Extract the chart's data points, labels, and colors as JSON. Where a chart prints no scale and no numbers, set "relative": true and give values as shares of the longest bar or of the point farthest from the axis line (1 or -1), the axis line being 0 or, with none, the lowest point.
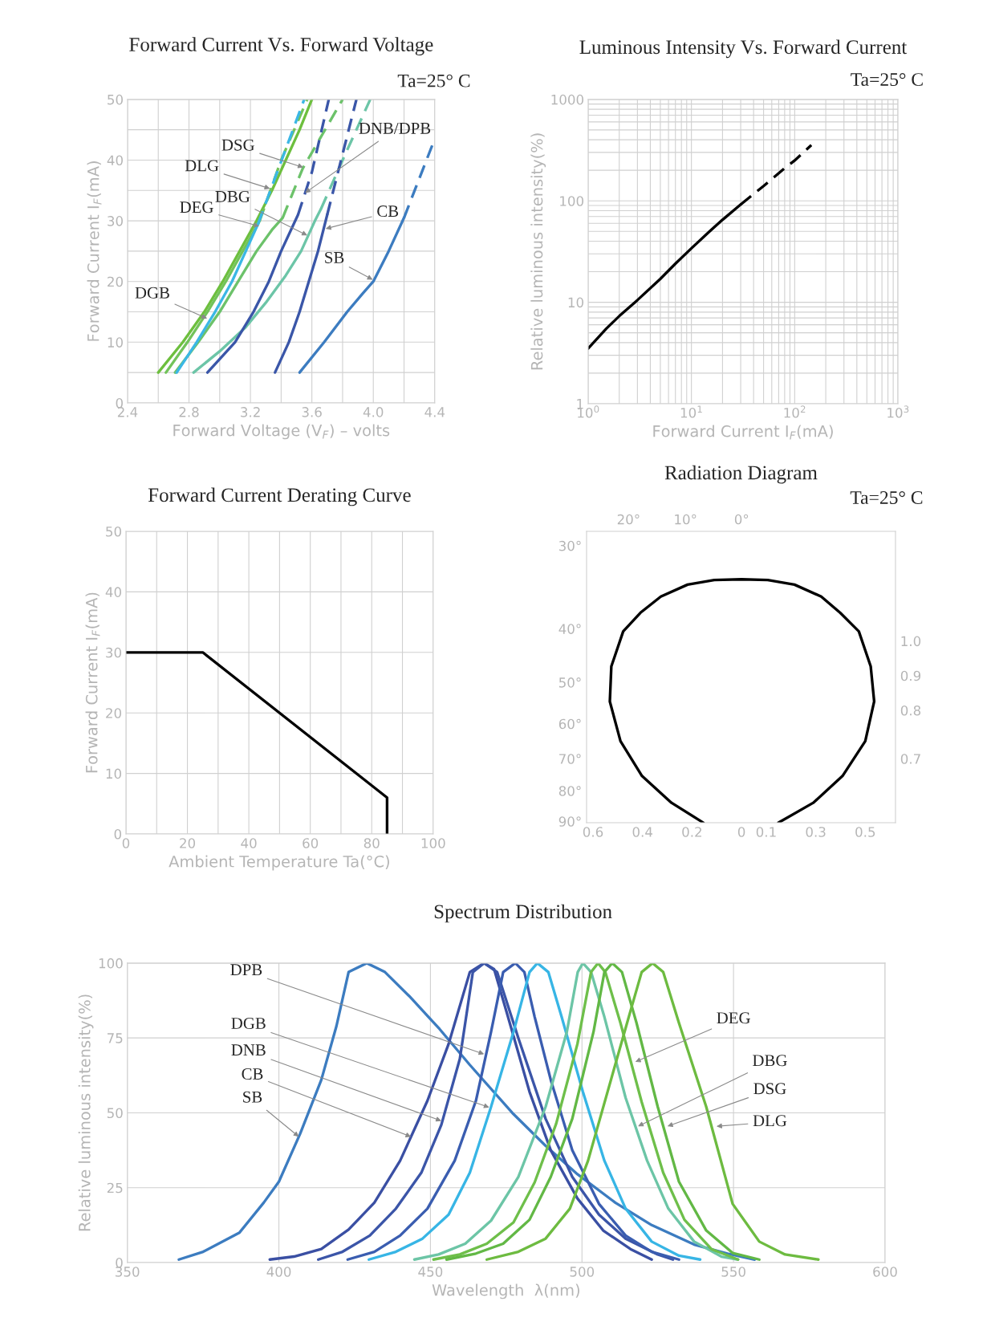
{
  "chart_data": [
    {
      "type": "line",
      "title": "Forward Current Vs. Forward Voltage",
      "xlabel": "Forward Voltage (V$_{F}$) – volts",
      "ylabel": "Forward Current I$_{F}$(mA)",
      "xlim": [
        2.4,
        4.4
      ],
      "xticks": [
        2.4,
        {
          "value": 2.6,
          "label": null
        },
        2.8,
        {
          "value": 3.0,
          "label": null
        },
        3.2,
        {
          "value": 3.4,
          "label": null
        },
        3.6,
        {
          "value": 3.8,
          "label": null
        },
        {
          "value": 4.0,
          "label": "4.0"
        },
        {
          "value": 4.2,
          "label": null
        },
        4.4
      ],
      "ylim": [
        0,
        50
      ],
      "yticks": [
        0,
        {
          "value": 5,
          "label": null
        },
        10,
        {
          "value": 15,
          "label": null
        },
        20,
        {
          "value": 25,
          "label": null
        },
        30,
        {
          "value": 35,
          "label": null
        },
        40,
        {
          "value": 45,
          "label": null
        },
        50
      ],
      "grid": true,
      "series": [
        {
          "color": "#6dbf3e",
          "x": [
            2.6,
            2.76,
            2.9,
            3.02,
            3.13,
            3.24,
            3.34,
            3.43,
            3.52,
            3.6
          ],
          "values": [
            5,
            10,
            15,
            20,
            25,
            30,
            35,
            40,
            45,
            50
          ]
        },
        {
          "color": "#72c35a",
          "x": [
            2.65,
            2.79,
            2.92,
            3.04,
            3.15,
            3.26
          ],
          "values": [
            5,
            10,
            15,
            20,
            25,
            30
          ]
        },
        {
          "color": "#72c35a",
          "line_style": "dashed",
          "x": [
            3.26,
            3.4,
            3.57
          ],
          "values": [
            30,
            40,
            50
          ]
        },
        {
          "color": "#6cc26a",
          "x": [
            2.71,
            2.86,
            3.0,
            3.12,
            3.24,
            3.34,
            3.41
          ],
          "values": [
            5,
            10,
            15,
            20,
            25,
            28.5,
            30.5
          ]
        },
        {
          "color": "#6cc26a",
          "line_style": "dashed",
          "x": [
            3.41,
            3.54,
            3.8
          ],
          "values": [
            30.5,
            38.6,
            50
          ]
        },
        {
          "color": "#3bb7e5",
          "x": [
            2.72,
            2.85,
            2.97,
            3.08,
            3.17,
            3.25
          ],
          "values": [
            5,
            10,
            15,
            20,
            25,
            29.5
          ]
        },
        {
          "color": "#3bb7e5",
          "line_style": "dashed",
          "x": [
            3.25,
            3.33,
            3.55
          ],
          "values": [
            29.5,
            35,
            50
          ]
        },
        {
          "color": "#6cc5a7",
          "x": [
            2.83,
            3.0,
            3.17,
            3.3,
            3.43,
            3.53,
            3.62,
            3.66
          ],
          "values": [
            5,
            8.5,
            12.5,
            16.5,
            21,
            25,
            30,
            32
          ]
        },
        {
          "color": "#6cc5a7",
          "line_style": "dashed",
          "x": [
            3.66,
            3.8,
            3.98
          ],
          "values": [
            32,
            40,
            50
          ]
        },
        {
          "color": "#3a56a8",
          "x": [
            2.92,
            3.1,
            3.22,
            3.32,
            3.4,
            3.51
          ],
          "values": [
            5,
            10,
            15,
            20,
            25,
            31
          ]
        },
        {
          "color": "#3a56a8",
          "line_style": "dashed",
          "x": [
            3.51,
            3.6,
            3.71
          ],
          "values": [
            31,
            38,
            50
          ]
        },
        {
          "color": "#3a56a8",
          "x": [
            3.36,
            3.45,
            3.52,
            3.58,
            3.64,
            3.7
          ],
          "values": [
            5,
            10,
            15,
            20,
            25,
            31
          ]
        },
        {
          "color": "#3a56a8",
          "line_style": "dashed",
          "x": [
            3.7,
            3.79,
            3.89
          ],
          "values": [
            31,
            40,
            50
          ]
        },
        {
          "color": "#3c7cc0",
          "x": [
            3.52,
            3.68,
            3.83,
            3.93,
            4.0,
            4.1,
            4.2
          ],
          "values": [
            5,
            10,
            15,
            18,
            20,
            25,
            30.5
          ]
        },
        {
          "color": "#3c7cc0",
          "line_style": "dashed",
          "x": [
            4.2,
            4.3,
            4.4
          ],
          "values": [
            30.5,
            37,
            43.5
          ]
        }
      ],
      "annotations": [
        "Ta=25° C",
        {
          "text": "DSG",
          "x": 3.544,
          "y": 38.8
        },
        {
          "text": "DLG",
          "x": 3.327,
          "y": 35.3
        },
        {
          "text": "DEG",
          "x": 3.257,
          "y": 29.1
        },
        {
          "text": "DBG",
          "x": 3.57,
          "y": 27.6
        },
        {
          "text": "DGB",
          "x": 2.918,
          "y": 13.9
        },
        {
          "text": "DNB/DPB",
          "x": 3.556,
          "y": 34.6
        },
        {
          "text": "CB",
          "x": 3.69,
          "y": 28.7
        },
        {
          "text": "SB",
          "x": 3.996,
          "y": 20.3
        }
      ]
    },
    {
      "type": "line",
      "title": "Luminous Intensity Vs. Forward Current",
      "xlabel": "Forward Current I$_{F}$(mA)",
      "ylabel": "Relative luminous intensity(%)",
      "log": "xy",
      "xlim": [
        1,
        1000
      ],
      "xticks": [
        {
          "value": 1,
          "label": "10$^{0}$"
        },
        {
          "value": 10,
          "label": "10$^{1}$"
        },
        {
          "value": 100,
          "label": "10$^{2}$"
        },
        {
          "value": 1000,
          "label": "10$^{3}$"
        }
      ],
      "ylim": [
        1,
        1000
      ],
      "yticks": [
        1,
        10,
        100,
        1000
      ],
      "grid": true,
      "series": [
        {
          "color": "#000000",
          "x": [
            1,
            1.5,
            2,
            3,
            5,
            7,
            10,
            15,
            20,
            30
          ],
          "values": [
            3.5,
            5.5,
            7.3,
            10.5,
            17,
            24,
            34,
            50,
            65,
            92
          ]
        },
        {
          "color": "#000000",
          "line_style": "dashed",
          "x": [
            30,
            50,
            80,
            100,
            145
          ],
          "values": [
            92,
            140,
            210,
            250,
            355
          ]
        }
      ],
      "annotations": [
        "Ta=25° C"
      ]
    },
    {
      "type": "line",
      "title": "Forward Current Derating Curve",
      "xlabel": "Ambient Temperature Ta(°C)",
      "ylabel": "Forward Current I$_{F}$(mA)",
      "xlim": [
        0,
        100
      ],
      "xticks": [
        0,
        {
          "value": 10,
          "label": null
        },
        20,
        {
          "value": 30,
          "label": null
        },
        40,
        {
          "value": 50,
          "label": null
        },
        60,
        {
          "value": 70,
          "label": null
        },
        80,
        {
          "value": 90,
          "label": null
        },
        100
      ],
      "ylim": [
        0,
        50
      ],
      "yticks": [
        0,
        10,
        20,
        30,
        40,
        50
      ],
      "grid": true,
      "series": [
        {
          "color": "#000000",
          "x": [
            0,
            25,
            85,
            85
          ],
          "values": [
            30,
            30,
            6,
            0
          ]
        }
      ]
    },
    {
      "type": "line",
      "title": "Radiation Diagram",
      "xlim": [
        -0.626,
        0.622
      ],
      "xticks": [
        {
          "value": -0.6,
          "label": "0.6"
        },
        {
          "value": -0.4,
          "label": "0.4"
        },
        {
          "value": -0.2,
          "label": "0.2"
        },
        0,
        0.1,
        0.3,
        0.5
      ],
      "relative": true,
      "series": [
        {
          "color": "#000000",
          "x": [
            -0.154,
            -0.283,
            -0.402,
            -0.489,
            -0.532,
            -0.526,
            -0.478,
            -0.408,
            -0.326,
            -0.218,
            -0.11,
            0,
            0.106,
            0.214,
            0.322,
            0.398,
            0.474,
            0.522,
            0.536,
            0.5,
            0.408,
            0.29,
            0.149
          ],
          "values": [
            0,
            0.082,
            0.192,
            0.335,
            0.498,
            0.642,
            0.786,
            0.863,
            0.929,
            0.978,
            0.997,
            1,
            0.997,
            0.978,
            0.929,
            0.863,
            0.786,
            0.642,
            0.498,
            0.335,
            0.192,
            0.082,
            0
          ]
        }
      ],
      "annotations": [
        "Ta=25° C",
        "30°",
        "40°",
        "50°",
        "60°",
        "70°",
        "80°",
        "90°",
        "20°",
        "10°",
        "0°",
        "1.0",
        "0.9",
        "0.8",
        "0.7"
      ]
    },
    {
      "type": "line",
      "title": "Spectrum Distribution",
      "xlabel": "Wavelength  λ(nm)",
      "ylabel": "Relative luminous intensity(%)",
      "xlim": [
        350,
        600
      ],
      "xticks": [
        350,
        400,
        450,
        500,
        550,
        600
      ],
      "ylim": [
        0,
        100
      ],
      "yticks": [
        0,
        25,
        50,
        75,
        100
      ],
      "grid": true,
      "series": [
        {
          "color": "#3c7cc0",
          "x": [
            367,
            375,
            387,
            395,
            400,
            407,
            414,
            419,
            423,
            429,
            435,
            443,
            453,
            463,
            477,
            488,
            498.5,
            511,
            523,
            537,
            548,
            557
          ],
          "values": [
            1,
            3.6,
            10,
            20,
            27,
            43,
            61,
            79,
            97,
            100,
            97,
            89,
            78,
            66,
            50,
            39,
            29.5,
            20,
            12.5,
            6,
            3,
            1
          ]
        },
        {
          "color": "#3a4fa3",
          "x": [
            397,
            405,
            414,
            423,
            431.5,
            440,
            449,
            456,
            463,
            467.7,
            471,
            475.6,
            482.7,
            489.7,
            498.5,
            507,
            516,
            523
          ],
          "values": [
            1,
            2,
            4.5,
            11,
            20,
            34,
            54,
            73,
            97,
            100,
            98,
            82,
            57,
            37.5,
            21.4,
            10.7,
            4.5,
            1
          ]
        },
        {
          "color": "#3b55a8",
          "x": [
            413,
            421,
            430,
            438.6,
            447,
            453.6,
            459.7,
            464,
            467.7,
            472,
            479,
            488,
            496.8,
            505.6,
            514.4,
            525,
            530
          ],
          "values": [
            1,
            3.6,
            9,
            18,
            30,
            46,
            68,
            97,
            100,
            97,
            75,
            48,
            28.6,
            16,
            8,
            2.7,
            1
          ]
        },
        {
          "color": "#3a5db0",
          "x": [
            422.7,
            431.5,
            440,
            449,
            458,
            465,
            470,
            474,
            478,
            481,
            484.4,
            489.7,
            496.8,
            505.6,
            514.4,
            523,
            532
          ],
          "values": [
            1,
            3.6,
            9,
            18,
            34,
            54,
            77,
            97,
            100,
            97,
            82,
            61,
            37.5,
            19.6,
            9,
            3.6,
            1
          ]
        },
        {
          "color": "#37b5e5",
          "x": [
            429.7,
            438.6,
            447.4,
            456,
            463,
            470,
            477.4,
            482.7,
            485.3,
            488.9,
            493.3,
            500.3,
            507.4,
            514.4,
            523,
            532,
            539
          ],
          "values": [
            1,
            3.6,
            8,
            16,
            30,
            52,
            77,
            97,
            100,
            97,
            82,
            57,
            34,
            18,
            7,
            2.3,
            1
          ]
        },
        {
          "color": "#6cc5a6",
          "x": [
            444.7,
            452.7,
            461.5,
            470,
            479,
            488,
            495,
            498.6,
            500.3,
            503,
            507.4,
            514.4,
            521.5,
            528.5,
            537,
            546,
            551.5
          ],
          "values": [
            1,
            2.7,
            6.3,
            14,
            28.6,
            52,
            77,
            97,
            100,
            97,
            82,
            55,
            34,
            18,
            7,
            2,
            1
          ]
        },
        {
          "color": "#6ebf4a",
          "x": [
            451,
            459.7,
            468.6,
            477.4,
            484.4,
            491.5,
            498.5,
            503,
            505.3,
            507.7,
            512.7,
            519.7,
            526.8,
            533.8,
            542.7,
            551.5
          ],
          "values": [
            1,
            2.7,
            6.3,
            13.4,
            26.8,
            46.4,
            73,
            97,
            100,
            97,
            80,
            53.6,
            30,
            14.3,
            4.5,
            1
          ]
        },
        {
          "color": "#62b845",
          "x": [
            455.3,
            465,
            474,
            482.7,
            489.7,
            496.8,
            503.8,
            507.4,
            510,
            513.2,
            518,
            525,
            532,
            541,
            549.7,
            558.5
          ],
          "values": [
            1,
            3,
            6.3,
            14.3,
            28.6,
            48,
            77,
            97,
            100,
            97,
            80,
            52,
            27,
            10.7,
            3.2,
            1
          ]
        },
        {
          "color": "#6dbb40",
          "x": [
            468.6,
            479,
            488,
            496,
            502,
            509,
            516,
            519.7,
            523.3,
            526.8,
            532,
            541,
            549.7,
            558.5,
            567,
            578
          ],
          "values": [
            1,
            3.6,
            8,
            18,
            34,
            59,
            84,
            97,
            100,
            97,
            80,
            52,
            19.6,
            7,
            2.7,
            1
          ]
        }
      ],
      "annotations": [
        {
          "text": "DPB",
          "x": 467.7,
          "y": 69.6
        },
        {
          "text": "DGB",
          "x": 469.4,
          "y": 51.8
        },
        {
          "text": "DNB",
          "x": 453.6,
          "y": 47.3
        },
        {
          "text": "CB",
          "x": 443.6,
          "y": 42
        },
        {
          "text": "SB",
          "x": 406.6,
          "y": 42
        },
        {
          "text": "DEG",
          "x": 517.6,
          "y": 67
        },
        {
          "text": "DBG",
          "x": 518.5,
          "y": 45.5
        },
        {
          "text": "DSG",
          "x": 528.2,
          "y": 45.5
        },
        {
          "text": "DLG",
          "x": 544.4,
          "y": 45.5
        }
      ]
    }
  ]
}
